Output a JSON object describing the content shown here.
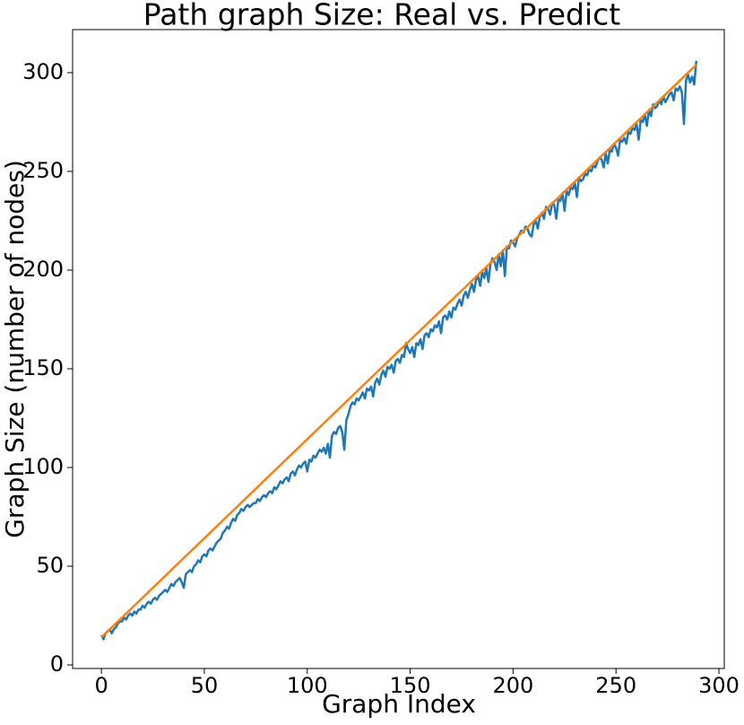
{
  "chart_data": {
    "type": "line",
    "title": "Path graph Size: Real vs. Predict",
    "xlabel": "Graph Index",
    "ylabel": "Graph Size (number of nodes)",
    "xlim": [
      -14,
      302.6
    ],
    "ylim": [
      -1.8,
      321.8
    ],
    "xticks": [
      0,
      50,
      100,
      150,
      200,
      250,
      300
    ],
    "yticks": [
      0,
      50,
      100,
      150,
      200,
      250,
      300
    ],
    "grid": false,
    "series": [
      {
        "color": "#1f77b4",
        "x": [
          0,
          1,
          2,
          3,
          4,
          5,
          6,
          7,
          8,
          9,
          10,
          11,
          12,
          13,
          14,
          15,
          16,
          17,
          18,
          19,
          20,
          21,
          22,
          23,
          24,
          25,
          26,
          27,
          28,
          29,
          30,
          31,
          32,
          33,
          34,
          35,
          36,
          37,
          38,
          39,
          40,
          41,
          42,
          43,
          44,
          45,
          46,
          47,
          48,
          49,
          50,
          51,
          52,
          53,
          54,
          55,
          56,
          57,
          58,
          59,
          60,
          61,
          62,
          63,
          64,
          65,
          66,
          67,
          68,
          69,
          70,
          71,
          72,
          73,
          74,
          75,
          76,
          77,
          78,
          79,
          80,
          81,
          82,
          83,
          84,
          85,
          86,
          87,
          88,
          89,
          90,
          91,
          92,
          93,
          94,
          95,
          96,
          97,
          98,
          99,
          100,
          101,
          102,
          103,
          104,
          105,
          106,
          107,
          108,
          109,
          110,
          111,
          112,
          113,
          114,
          115,
          116,
          117,
          118,
          119,
          120,
          121,
          122,
          123,
          124,
          125,
          126,
          127,
          128,
          129,
          130,
          131,
          132,
          133,
          134,
          135,
          136,
          137,
          138,
          139,
          140,
          141,
          142,
          143,
          144,
          145,
          146,
          147,
          148,
          149,
          150,
          151,
          152,
          153,
          154,
          155,
          156,
          157,
          158,
          159,
          160,
          161,
          162,
          163,
          164,
          165,
          166,
          167,
          168,
          169,
          170,
          171,
          172,
          173,
          174,
          175,
          176,
          177,
          178,
          179,
          180,
          181,
          182,
          183,
          184,
          185,
          186,
          187,
          188,
          189,
          190,
          191,
          192,
          193,
          194,
          195,
          196,
          197,
          198,
          199,
          200,
          201,
          202,
          203,
          204,
          205,
          206,
          207,
          208,
          209,
          210,
          211,
          212,
          213,
          214,
          215,
          216,
          217,
          218,
          219,
          220,
          221,
          222,
          223,
          224,
          225,
          226,
          227,
          228,
          229,
          230,
          231,
          232,
          233,
          234,
          235,
          236,
          237,
          238,
          239,
          240,
          241,
          242,
          243,
          244,
          245,
          246,
          247,
          248,
          249,
          250,
          251,
          252,
          253,
          254,
          255,
          256,
          257,
          258,
          259,
          260,
          261,
          262,
          263,
          264,
          265,
          266,
          267,
          268,
          269,
          270,
          271,
          272,
          273,
          274,
          275,
          276,
          277,
          278,
          279,
          280,
          281,
          282,
          283,
          284,
          285,
          286,
          287,
          288,
          289
        ],
        "values": [
          15,
          13,
          16,
          17,
          18,
          16,
          18,
          19,
          21,
          22,
          22,
          24,
          23,
          25,
          26,
          25,
          27,
          26,
          28,
          28,
          30,
          29,
          31,
          32,
          31,
          33,
          34,
          33,
          35,
          36,
          37,
          38,
          37,
          39,
          41,
          40,
          42,
          43,
          44,
          42,
          39,
          46,
          47,
          48,
          47,
          50,
          51,
          53,
          52,
          55,
          56,
          55,
          58,
          59,
          58,
          60,
          62,
          63,
          64,
          67,
          68,
          70,
          69,
          72,
          74,
          73,
          76,
          77,
          79,
          78,
          80,
          81,
          80,
          81,
          82,
          82,
          84,
          83,
          85,
          86,
          85,
          87,
          88,
          87,
          90,
          89,
          91,
          93,
          92,
          94,
          95,
          93,
          97,
          98,
          96,
          99,
          101,
          100,
          102,
          103,
          98,
          104,
          103,
          106,
          105,
          107,
          109,
          108,
          110,
          107,
          112,
          105,
          116,
          118,
          117,
          120,
          121,
          118,
          109,
          124,
          127,
          131,
          133,
          132,
          135,
          134,
          136,
          138,
          135,
          140,
          139,
          141,
          136,
          143,
          145,
          142,
          147,
          149,
          146,
          151,
          150,
          152,
          148,
          154,
          155,
          153,
          157,
          156,
          163,
          160,
          158,
          161,
          156,
          163,
          162,
          165,
          160,
          167,
          168,
          166,
          170,
          169,
          172,
          171,
          174,
          168,
          176,
          177,
          175,
          179,
          176,
          181,
          180,
          183,
          185,
          182,
          187,
          189,
          186,
          190,
          193,
          189,
          195,
          197,
          192,
          199,
          196,
          201,
          194,
          203,
          206,
          204,
          200,
          208,
          202,
          210,
          197,
          212,
          211,
          215,
          214,
          212,
          216,
          218,
          220,
          219,
          222,
          221,
          218,
          217,
          223,
          225,
          221,
          227,
          229,
          226,
          232,
          231,
          228,
          234,
          233,
          226,
          236,
          235,
          239,
          230,
          240,
          238,
          242,
          241,
          244,
          237,
          247,
          245,
          246,
          249,
          248,
          251,
          250,
          253,
          252,
          255,
          257,
          256,
          252,
          259,
          254,
          261,
          260,
          264,
          262,
          258,
          266,
          265,
          267,
          264,
          270,
          269,
          272,
          271,
          274,
          266,
          276,
          275,
          279,
          273,
          281,
          278,
          284,
          282,
          283,
          286,
          284,
          288,
          285,
          287,
          289,
          290,
          286,
          292,
          291,
          293,
          290,
          274,
          296,
          299,
          295,
          298,
          294,
          306
        ]
      },
      {
        "color": "#ff7f0e",
        "x": [
          0,
          289
        ],
        "values": [
          14,
          304
        ]
      }
    ]
  }
}
